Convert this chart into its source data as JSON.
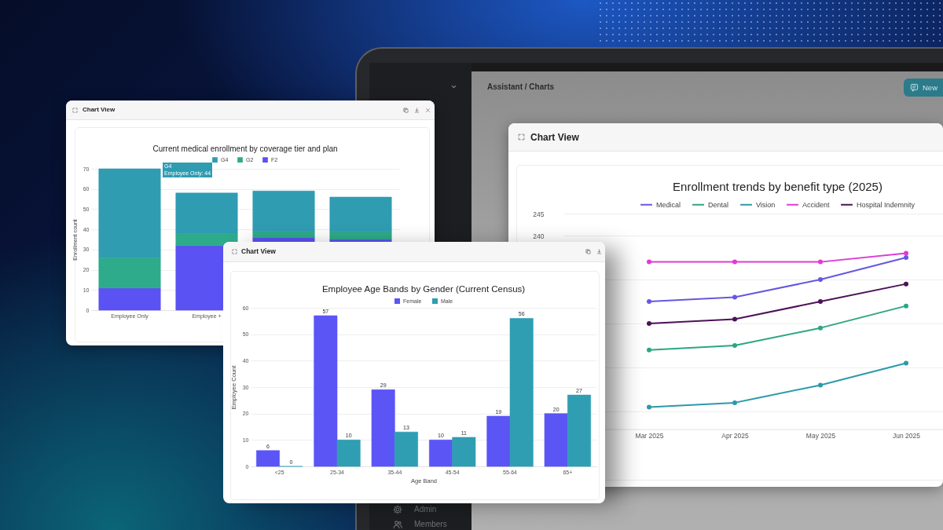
{
  "chart_data": [
    {
      "type": "bar",
      "stacked": true,
      "title": "Current medical enrollment by coverage tier and plan",
      "ylabel": "Enrollment count",
      "categories": [
        "Employee Only",
        "Employee +",
        null,
        null
      ],
      "series": [
        {
          "name": "F2",
          "color": "#5a52f2",
          "values": [
            11,
            32,
            36,
            35
          ]
        },
        {
          "name": "G2",
          "color": "#2eab8b",
          "values": [
            15,
            6,
            3,
            4
          ]
        },
        {
          "name": "G4",
          "color": "#2f9cb2",
          "values": [
            44,
            20,
            20,
            17
          ]
        }
      ],
      "ylim": [
        0,
        70
      ],
      "yticks": [
        0,
        10,
        20,
        30,
        40,
        50,
        60,
        70
      ],
      "grid": "y",
      "legend": "top",
      "annotations": [
        "Chart View",
        "G4\nEmployee Only: 44"
      ]
    },
    {
      "type": "line",
      "title": "Enrollment trends by benefit type (2025)",
      "categories": [
        "Mar 2025",
        "Apr 2025",
        "May 2025",
        "Jun 2025"
      ],
      "series": [
        {
          "name": "Medical",
          "color": "#6657e0",
          "values": [
            225,
            226,
            230,
            235
          ]
        },
        {
          "name": "Dental",
          "color": "#2ca683",
          "values": [
            214,
            215,
            219,
            224
          ]
        },
        {
          "name": "Vision",
          "color": "#2b9aaa",
          "values": [
            201,
            202,
            206,
            211
          ]
        },
        {
          "name": "Accident",
          "color": "#e03ad6",
          "values": [
            234,
            234,
            234,
            236
          ]
        },
        {
          "name": "Hospital Indemnity",
          "color": "#4c1258",
          "values": [
            220,
            221,
            225,
            229
          ]
        }
      ],
      "ylim": [
        196,
        245
      ],
      "yticks": [
        {
          "value": 200,
          "label": null
        },
        {
          "value": 210,
          "label": null
        },
        {
          "value": 220,
          "label": null
        },
        {
          "value": 230,
          "label": null
        },
        240,
        245
      ],
      "grid": "y",
      "legend": "top",
      "marker": "circle",
      "annotations": [
        "Chart View"
      ]
    },
    {
      "type": "bar",
      "title": "Employee Age Bands by Gender (Current Census)",
      "xlabel": "Age Band",
      "ylabel": "Employee Count",
      "categories": [
        "<25",
        "25-34",
        "35-44",
        "45-54",
        "55-64",
        "65+"
      ],
      "series": [
        {
          "name": "Female",
          "color": "#5b55f6",
          "values": [
            6,
            57,
            29,
            10,
            19,
            20
          ]
        },
        {
          "name": "Male",
          "color": "#2f9eb2",
          "values": [
            0,
            10,
            13,
            11,
            56,
            27
          ]
        }
      ],
      "ylim": [
        0,
        60
      ],
      "yticks": [
        0,
        10,
        20,
        30,
        40,
        50,
        60
      ],
      "grid": "y",
      "legend": "top",
      "data_labels": true,
      "annotations": [
        "Chart View"
      ]
    },
    {
      "type": "other",
      "annotations": [
        "Assistant / Charts",
        "New",
        "Admin",
        "Members"
      ]
    }
  ]
}
